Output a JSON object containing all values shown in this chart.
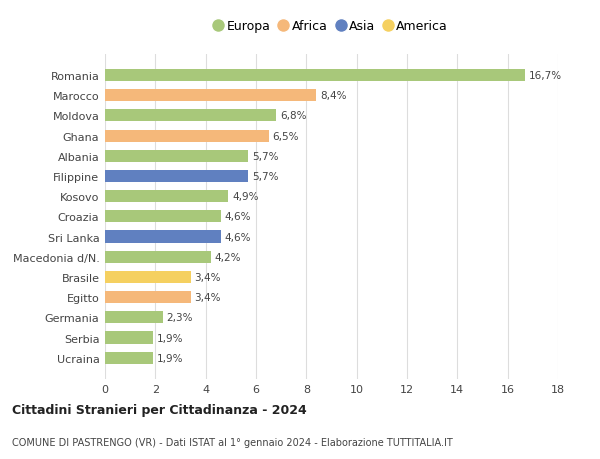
{
  "countries": [
    "Romania",
    "Marocco",
    "Moldova",
    "Ghana",
    "Albania",
    "Filippine",
    "Kosovo",
    "Croazia",
    "Sri Lanka",
    "Macedonia d/N.",
    "Brasile",
    "Egitto",
    "Germania",
    "Serbia",
    "Ucraina"
  ],
  "values": [
    16.7,
    8.4,
    6.8,
    6.5,
    5.7,
    5.7,
    4.9,
    4.6,
    4.6,
    4.2,
    3.4,
    3.4,
    2.3,
    1.9,
    1.9
  ],
  "continents": [
    "Europa",
    "Africa",
    "Europa",
    "Africa",
    "Europa",
    "Asia",
    "Europa",
    "Europa",
    "Asia",
    "Europa",
    "America",
    "Africa",
    "Europa",
    "Europa",
    "Europa"
  ],
  "colors": {
    "Europa": "#a8c87a",
    "Africa": "#f5b87a",
    "Asia": "#6080c0",
    "America": "#f5d060"
  },
  "legend_order": [
    "Europa",
    "Africa",
    "Asia",
    "America"
  ],
  "xlim": [
    0,
    18
  ],
  "xticks": [
    0,
    2,
    4,
    6,
    8,
    10,
    12,
    14,
    16,
    18
  ],
  "title": "Cittadini Stranieri per Cittadinanza - 2024",
  "subtitle": "COMUNE DI PASTRENGO (VR) - Dati ISTAT al 1° gennaio 2024 - Elaborazione TUTTITALIA.IT",
  "bg_color": "#ffffff",
  "grid_color": "#dddddd",
  "bar_height": 0.6
}
